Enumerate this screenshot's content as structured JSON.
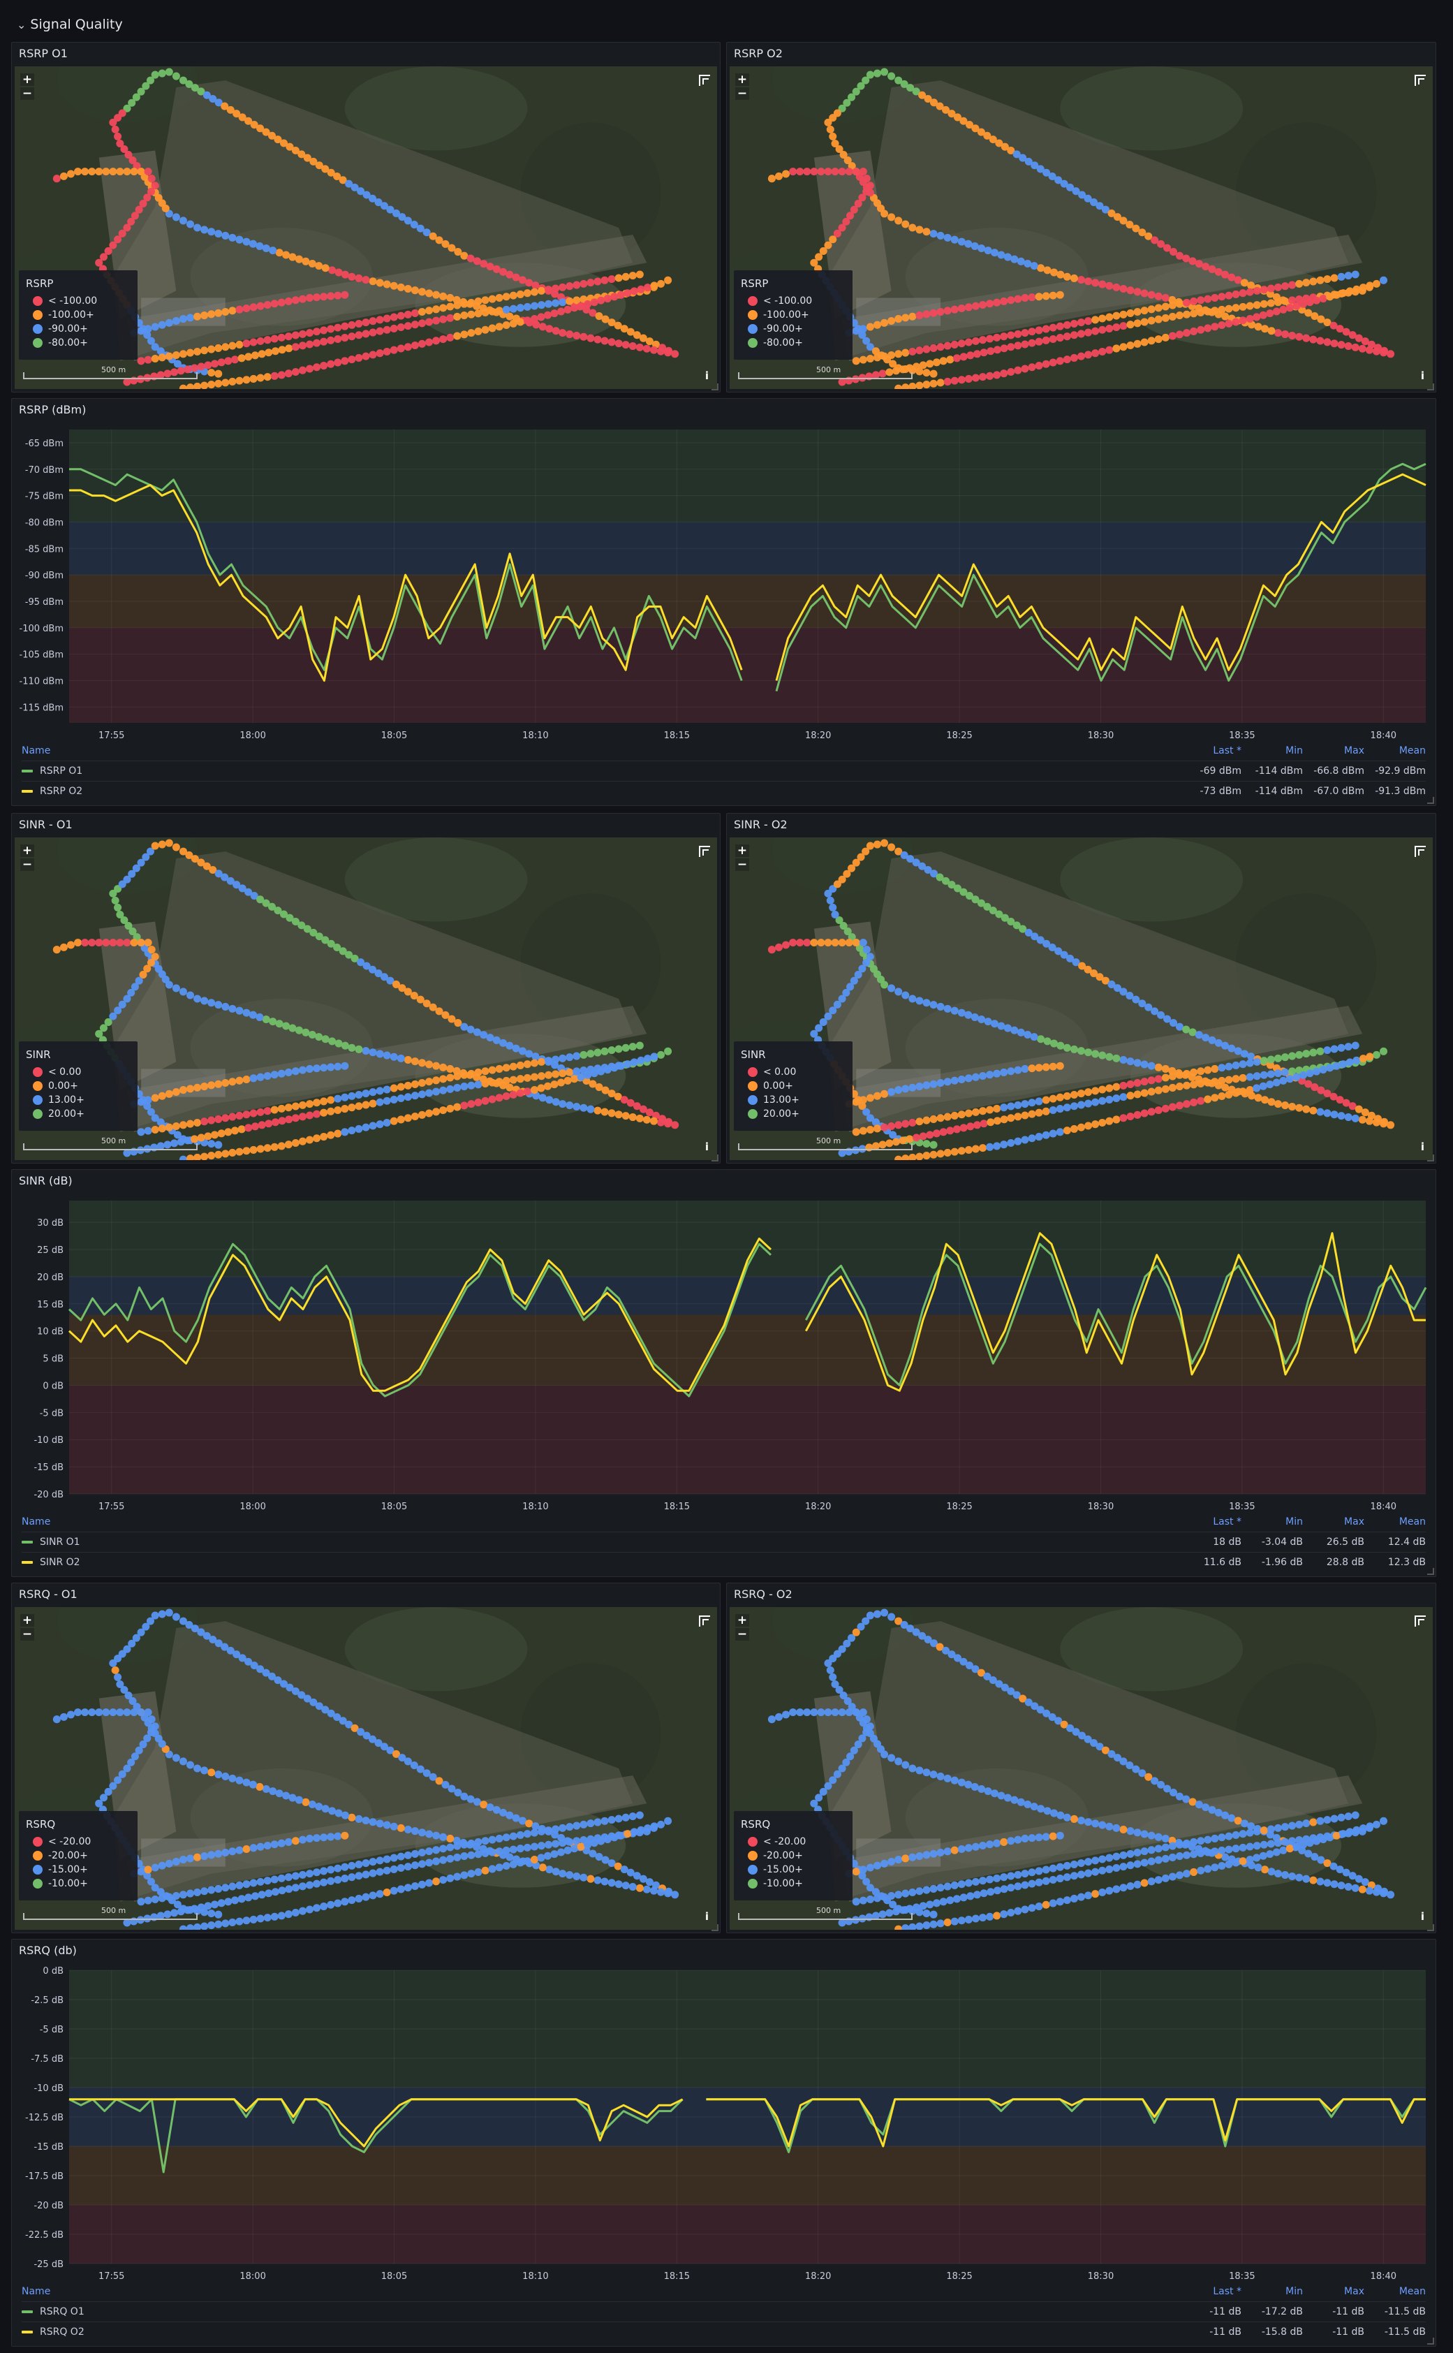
{
  "row": {
    "title": "Signal Quality"
  },
  "map_controls": {
    "zoom_in": "+",
    "zoom_out": "−",
    "info": "i",
    "scale": "500 m"
  },
  "colors": {
    "red": "#f2495c",
    "orange": "#ff9830",
    "blue": "#5794f2",
    "green": "#73bf69",
    "yellow": "#fade2a"
  },
  "maps": [
    {
      "title": "RSRP O1",
      "legend_title": "RSRP",
      "legend": [
        "< -100.00",
        "-100.00+",
        "-90.00+",
        "-80.00+"
      ],
      "metric": "rsrp"
    },
    {
      "title": "RSRP O2",
      "legend_title": "RSRP",
      "legend": [
        "< -100.00",
        "-100.00+",
        "-90.00+",
        "-80.00+"
      ],
      "metric": "rsrp"
    },
    {
      "title": "SINR - O1",
      "legend_title": "SINR",
      "legend": [
        "< 0.00",
        "0.00+",
        "13.00+",
        "20.00+"
      ],
      "metric": "sinr"
    },
    {
      "title": "SINR - O2",
      "legend_title": "SINR",
      "legend": [
        "< 0.00",
        "0.00+",
        "13.00+",
        "20.00+"
      ],
      "metric": "sinr"
    },
    {
      "title": "RSRQ - O1",
      "legend_title": "RSRQ",
      "legend": [
        "< -20.00",
        "-20.00+",
        "-15.00+",
        "-10.00+"
      ],
      "metric": "rsrq"
    },
    {
      "title": "RSRQ - O2",
      "legend_title": "RSRQ",
      "legend": [
        "< -20.00",
        "-20.00+",
        "-15.00+",
        "-10.00+"
      ],
      "metric": "rsrq"
    }
  ],
  "timeseries": [
    {
      "title": "RSRP (dBm)",
      "table_headers": {
        "name": "Name",
        "last": "Last *",
        "min": "Min",
        "max": "Max",
        "mean": "Mean"
      },
      "rows": [
        {
          "name": "RSRP O1",
          "last": "-69 dBm",
          "min": "-114 dBm",
          "max": "-66.8 dBm",
          "mean": "-92.9 dBm"
        },
        {
          "name": "RSRP O2",
          "last": "-73 dBm",
          "min": "-114 dBm",
          "max": "-67.0 dBm",
          "mean": "-91.3 dBm"
        }
      ]
    },
    {
      "title": "SINR (dB)",
      "table_headers": {
        "name": "Name",
        "last": "Last *",
        "min": "Min",
        "max": "Max",
        "mean": "Mean"
      },
      "rows": [
        {
          "name": "SINR O1",
          "last": "18 dB",
          "min": "-3.04 dB",
          "max": "26.5 dB",
          "mean": "12.4 dB"
        },
        {
          "name": "SINR O2",
          "last": "11.6 dB",
          "min": "-1.96 dB",
          "max": "28.8 dB",
          "mean": "12.3 dB"
        }
      ]
    },
    {
      "title": "RSRQ (db)",
      "table_headers": {
        "name": "Name",
        "last": "Last *",
        "min": "Min",
        "max": "Max",
        "mean": "Mean"
      },
      "rows": [
        {
          "name": "RSRQ O1",
          "last": "-11 dB",
          "min": "-17.2 dB",
          "max": "-11 dB",
          "mean": "-11.5 dB"
        },
        {
          "name": "RSRQ O2",
          "last": "-11 dB",
          "min": "-15.8 dB",
          "max": "-11 dB",
          "mean": "-11.5 dB"
        }
      ]
    }
  ],
  "chart_data": [
    {
      "type": "line",
      "title": "RSRP (dBm)",
      "xticks": [
        "17:55",
        "18:00",
        "18:05",
        "18:10",
        "18:15",
        "18:20",
        "18:25",
        "18:30",
        "18:35",
        "18:40"
      ],
      "x_start": "17:53:30",
      "x_end": "18:41:30",
      "yticks": [
        "-65 dBm",
        "-70 dBm",
        "-75 dBm",
        "-80 dBm",
        "-85 dBm",
        "-90 dBm",
        "-95 dBm",
        "-100 dBm",
        "-105 dBm",
        "-110 dBm",
        "-115 dBm"
      ],
      "ylim": [
        -118,
        -62.5
      ],
      "thresholds": [
        {
          "from": -62.5,
          "to": -80,
          "color": "#73bf69"
        },
        {
          "from": -80,
          "to": -90,
          "color": "#5794f2"
        },
        {
          "from": -90,
          "to": -100,
          "color": "#ff9830"
        },
        {
          "from": -100,
          "to": -118,
          "color": "#f2495c"
        }
      ],
      "series": [
        {
          "name": "RSRP O1",
          "color": "#73bf69",
          "values": [
            -70,
            -70,
            -71,
            -72,
            -73,
            -71,
            -72,
            -73,
            -74,
            -72,
            -76,
            -80,
            -86,
            -90,
            -88,
            -92,
            -94,
            -96,
            -100,
            -102,
            -98,
            -104,
            -108,
            -100,
            -102,
            -96,
            -104,
            -106,
            -100,
            -92,
            -96,
            -100,
            -103,
            -98,
            -94,
            -90,
            -102,
            -96,
            -88,
            -96,
            -92,
            -104,
            -100,
            -96,
            -102,
            -98,
            -104,
            -100,
            -106,
            -100,
            -94,
            -98,
            -104,
            -100,
            -102,
            -96,
            -100,
            -104,
            -110,
            null,
            null,
            -112,
            -104,
            -100,
            -96,
            -94,
            -98,
            -100,
            -94,
            -96,
            -92,
            -96,
            -98,
            -100,
            -96,
            -92,
            -94,
            -96,
            -90,
            -94,
            -98,
            -96,
            -100,
            -98,
            -102,
            -104,
            -106,
            -108,
            -104,
            -110,
            -106,
            -108,
            -100,
            -102,
            -104,
            -106,
            -98,
            -104,
            -108,
            -104,
            -110,
            -106,
            -100,
            -94,
            -96,
            -92,
            -90,
            -86,
            -82,
            -84,
            -80,
            -78,
            -76,
            -72,
            -70,
            -69,
            -70,
            -69
          ]
        },
        {
          "name": "RSRP O2",
          "color": "#fade2a",
          "values": [
            -74,
            -74,
            -75,
            -75,
            -76,
            -75,
            -74,
            -73,
            -75,
            -74,
            -78,
            -82,
            -88,
            -92,
            -90,
            -94,
            -96,
            -98,
            -102,
            -100,
            -96,
            -106,
            -110,
            -98,
            -100,
            -94,
            -106,
            -104,
            -98,
            -90,
            -94,
            -102,
            -100,
            -96,
            -92,
            -88,
            -100,
            -94,
            -86,
            -94,
            -90,
            -102,
            -98,
            -98,
            -100,
            -96,
            -102,
            -104,
            -108,
            -98,
            -96,
            -96,
            -102,
            -98,
            -100,
            -94,
            -98,
            -102,
            -108,
            null,
            null,
            -110,
            -102,
            -98,
            -94,
            -92,
            -96,
            -98,
            -92,
            -94,
            -90,
            -94,
            -96,
            -98,
            -94,
            -90,
            -92,
            -94,
            -88,
            -92,
            -96,
            -94,
            -98,
            -96,
            -100,
            -102,
            -104,
            -106,
            -102,
            -108,
            -104,
            -106,
            -98,
            -100,
            -102,
            -104,
            -96,
            -102,
            -106,
            -102,
            -108,
            -104,
            -98,
            -92,
            -94,
            -90,
            -88,
            -84,
            -80,
            -82,
            -78,
            -76,
            -74,
            -73,
            -72,
            -71,
            -72,
            -73
          ]
        }
      ]
    },
    {
      "type": "line",
      "title": "SINR (dB)",
      "xticks": [
        "17:55",
        "18:00",
        "18:05",
        "18:10",
        "18:15",
        "18:20",
        "18:25",
        "18:30",
        "18:35",
        "18:40"
      ],
      "x_start": "17:53:30",
      "x_end": "18:41:30",
      "yticks": [
        "30 dB",
        "25 dB",
        "20 dB",
        "15 dB",
        "10 dB",
        "5 dB",
        "0 dB",
        "-5 dB",
        "-10 dB",
        "-15 dB",
        "-20 dB"
      ],
      "ylim": [
        -20,
        34
      ],
      "thresholds": [
        {
          "from": 34,
          "to": 20,
          "color": "#73bf69"
        },
        {
          "from": 20,
          "to": 13,
          "color": "#5794f2"
        },
        {
          "from": 13,
          "to": 0,
          "color": "#ff9830"
        },
        {
          "from": 0,
          "to": -20,
          "color": "#f2495c"
        }
      ],
      "series": [
        {
          "name": "SINR O1",
          "color": "#73bf69",
          "values": [
            14,
            12,
            16,
            13,
            15,
            12,
            18,
            14,
            16,
            10,
            8,
            12,
            18,
            22,
            26,
            24,
            20,
            16,
            14,
            18,
            16,
            20,
            22,
            18,
            14,
            4,
            0,
            -2,
            -1,
            0,
            2,
            6,
            10,
            14,
            18,
            20,
            24,
            22,
            16,
            14,
            18,
            22,
            20,
            16,
            12,
            14,
            18,
            16,
            12,
            8,
            4,
            2,
            0,
            -2,
            2,
            6,
            10,
            16,
            22,
            26,
            24,
            null,
            null,
            12,
            16,
            20,
            22,
            18,
            14,
            8,
            2,
            0,
            6,
            14,
            20,
            24,
            22,
            16,
            10,
            4,
            8,
            14,
            20,
            26,
            24,
            18,
            12,
            8,
            14,
            10,
            6,
            14,
            20,
            22,
            18,
            12,
            4,
            8,
            14,
            20,
            22,
            18,
            14,
            10,
            4,
            8,
            16,
            22,
            20,
            14,
            8,
            12,
            18,
            20,
            16,
            14,
            18
          ]
        },
        {
          "name": "SINR O2",
          "color": "#fade2a",
          "values": [
            10,
            8,
            12,
            9,
            11,
            8,
            10,
            9,
            8,
            6,
            4,
            8,
            16,
            20,
            24,
            22,
            18,
            14,
            12,
            16,
            14,
            18,
            20,
            16,
            12,
            2,
            -1,
            -1,
            0,
            1,
            3,
            7,
            11,
            15,
            19,
            21,
            25,
            23,
            17,
            15,
            19,
            23,
            21,
            17,
            13,
            15,
            17,
            15,
            11,
            7,
            3,
            1,
            -1,
            -1,
            3,
            7,
            11,
            17,
            23,
            27,
            25,
            null,
            null,
            10,
            14,
            18,
            20,
            16,
            12,
            6,
            0,
            -1,
            4,
            12,
            18,
            26,
            24,
            18,
            12,
            6,
            10,
            16,
            22,
            28,
            26,
            20,
            14,
            6,
            12,
            8,
            4,
            12,
            18,
            24,
            20,
            14,
            2,
            6,
            12,
            18,
            24,
            20,
            16,
            12,
            2,
            6,
            14,
            20,
            28,
            16,
            6,
            10,
            16,
            22,
            18,
            12,
            12
          ]
        }
      ]
    },
    {
      "type": "line",
      "title": "RSRQ (db)",
      "xticks": [
        "17:55",
        "18:00",
        "18:05",
        "18:10",
        "18:15",
        "18:20",
        "18:25",
        "18:30",
        "18:35",
        "18:40"
      ],
      "x_start": "17:53:30",
      "x_end": "18:41:30",
      "yticks": [
        "0 dB",
        "-2.5 dB",
        "-5 dB",
        "-7.5 dB",
        "-10 dB",
        "-12.5 dB",
        "-15 dB",
        "-17.5 dB",
        "-20 dB",
        "-22.5 dB",
        "-25 dB"
      ],
      "ylim": [
        -25,
        0
      ],
      "thresholds": [
        {
          "from": 0,
          "to": -10,
          "color": "#73bf69"
        },
        {
          "from": -10,
          "to": -15,
          "color": "#5794f2"
        },
        {
          "from": -15,
          "to": -20,
          "color": "#ff9830"
        },
        {
          "from": -20,
          "to": -25,
          "color": "#f2495c"
        }
      ],
      "series": [
        {
          "name": "RSRQ O1",
          "color": "#73bf69",
          "values": [
            -11,
            -11.5,
            -11,
            -12,
            -11,
            -11.5,
            -12,
            -11,
            -17.2,
            -11,
            -11,
            -11,
            -11,
            -11,
            -11,
            -12.5,
            -11,
            -11,
            -11,
            -13,
            -11,
            -11,
            -12,
            -14,
            -15,
            -15.5,
            -14,
            -13,
            -12,
            -11,
            -11,
            -11,
            -11,
            -11,
            -11,
            -11,
            -11,
            -11,
            -11,
            -11,
            -11,
            -11,
            -11,
            -11,
            -12,
            -14,
            -13,
            -12,
            -12.5,
            -13,
            -12,
            -12,
            -11,
            null,
            -11,
            -11,
            -11,
            -11,
            -11,
            -11,
            -13,
            -15.5,
            -12,
            -11,
            -11,
            -11,
            -11,
            -11,
            -13,
            -14,
            -11,
            -11,
            -11,
            -11,
            -11,
            -11,
            -11,
            -11,
            -11,
            -12,
            -11,
            -11,
            -11,
            -11,
            -11,
            -12,
            -11,
            -11,
            -11,
            -11,
            -11,
            -11,
            -13,
            -11,
            -11,
            -11,
            -11,
            -11,
            -15,
            -11,
            -11,
            -11,
            -11,
            -11,
            -11,
            -11,
            -11,
            -12.5,
            -11,
            -11,
            -11,
            -11,
            -11,
            -12.5,
            -11,
            -11
          ]
        },
        {
          "name": "RSRQ O2",
          "color": "#fade2a",
          "values": [
            -11,
            -11,
            -11,
            -11,
            -11,
            -11,
            -11,
            -11,
            -11,
            -11,
            -11,
            -11,
            -11,
            -11,
            -11,
            -12,
            -11,
            -11,
            -11,
            -12.5,
            -11,
            -11,
            -11.5,
            -13,
            -14,
            -15,
            -13.5,
            -12.5,
            -11.5,
            -11,
            -11,
            -11,
            -11,
            -11,
            -11,
            -11,
            -11,
            -11,
            -11,
            -11,
            -11,
            -11,
            -11,
            -11,
            -11.5,
            -14.5,
            -12,
            -11.5,
            -12,
            -12.5,
            -11.5,
            -11.5,
            -11,
            null,
            -11,
            -11,
            -11,
            -11,
            -11,
            -11,
            -12.5,
            -15,
            -11.5,
            -11,
            -11,
            -11,
            -11,
            -11,
            -12.5,
            -15,
            -11,
            -11,
            -11,
            -11,
            -11,
            -11,
            -11,
            -11,
            -11,
            -11.5,
            -11,
            -11,
            -11,
            -11,
            -11,
            -11.5,
            -11,
            -11,
            -11,
            -11,
            -11,
            -11,
            -12.5,
            -11,
            -11,
            -11,
            -11,
            -11,
            -14.5,
            -11,
            -11,
            -11,
            -11,
            -11,
            -11,
            -11,
            -11,
            -12,
            -11,
            -11,
            -11,
            -11,
            -11,
            -13,
            -11,
            -11
          ]
        }
      ]
    }
  ]
}
